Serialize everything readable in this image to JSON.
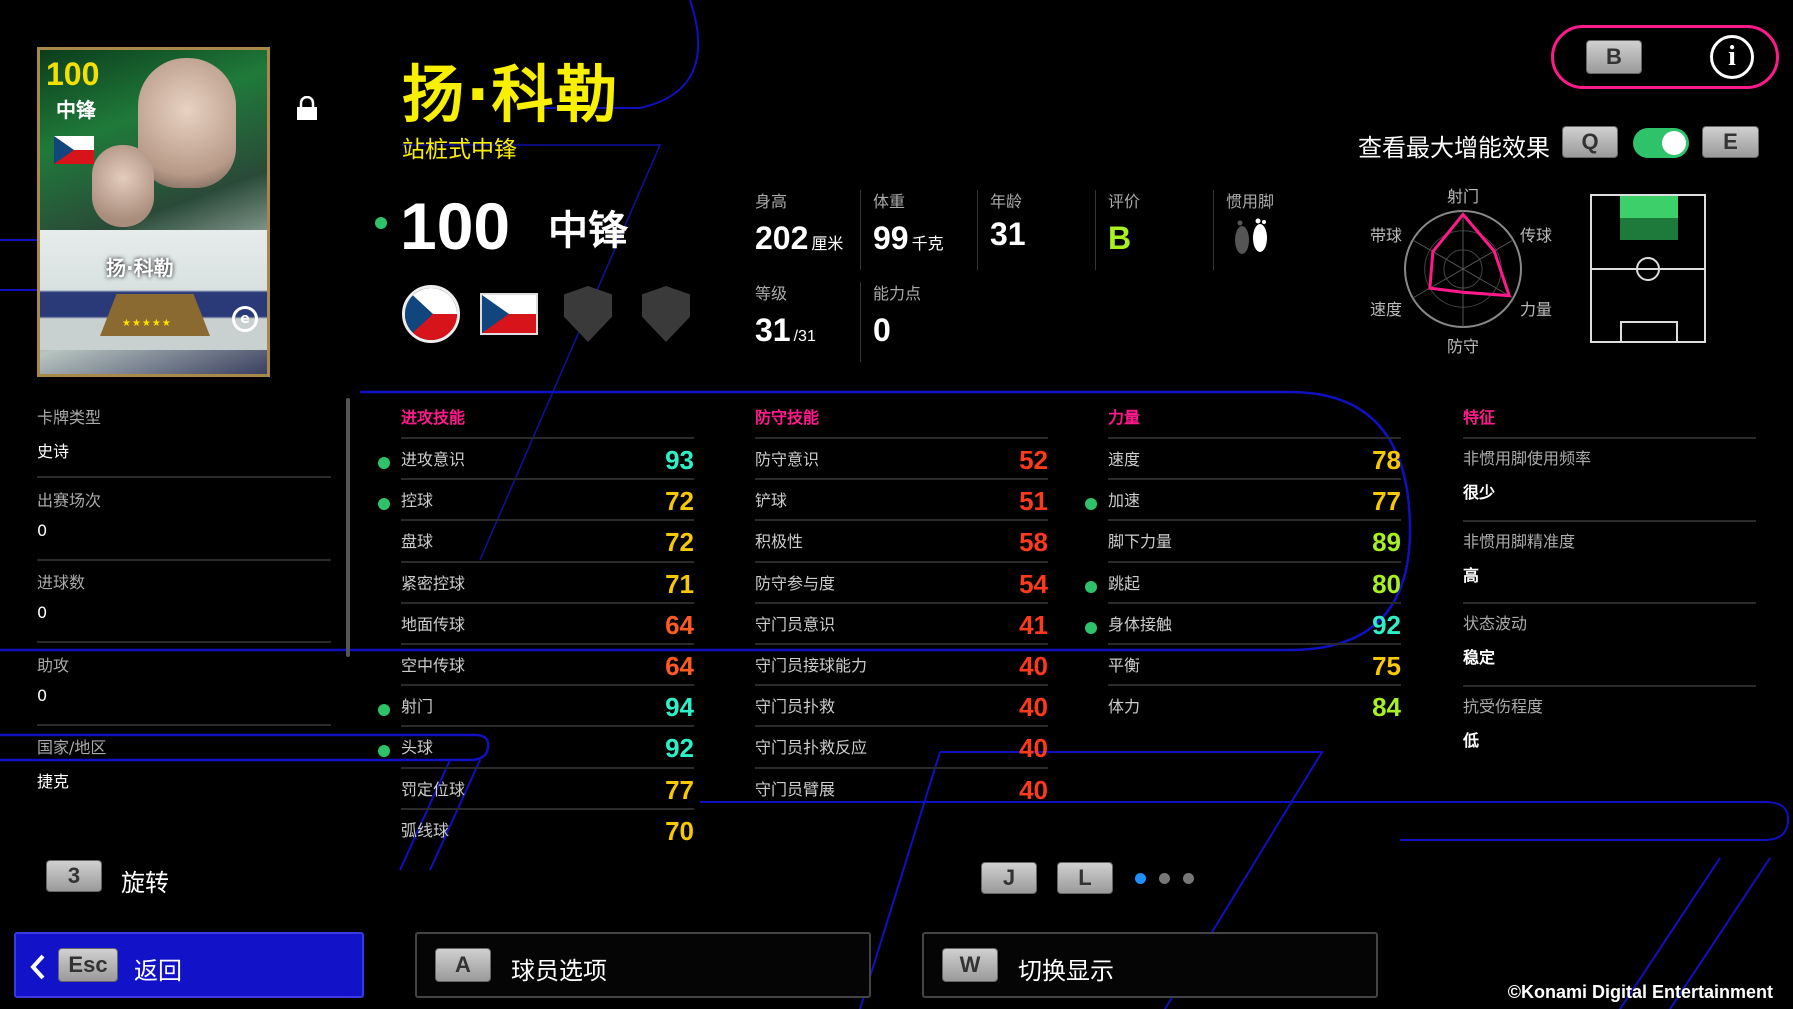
{
  "colors": {
    "accent_pink": "#ff1a8c",
    "name_yellow": "#f8f000",
    "dot_green": "#2ec36a",
    "val_90": "#2ef0c8",
    "val_80": "#a8f020",
    "val_70": "#f8c800",
    "val_60": "#ff5a1f",
    "val_low": "#ff3a1a",
    "back_button": "#1212c8"
  },
  "card": {
    "overall": "100",
    "position": "中锋",
    "name": "扬·科勒",
    "flag": "czech-flag",
    "stars": "★★★★★",
    "logo": "e-logo-icon"
  },
  "player": {
    "name": "扬·科勒",
    "playstyle": "站桩式中锋",
    "overall": "100",
    "position": "中锋",
    "locked": true
  },
  "stats": {
    "height": {
      "label": "身高",
      "value": "202",
      "unit": "厘米"
    },
    "weight": {
      "label": "体重",
      "value": "99",
      "unit": "千克"
    },
    "age": {
      "label": "年龄",
      "value": "31"
    },
    "rating": {
      "label": "评价",
      "value": "B"
    },
    "foot": {
      "label": "惯用脚",
      "icon": "feet-icon",
      "value": "right"
    },
    "level": {
      "label": "等级",
      "value": "31",
      "max": "/31"
    },
    "points": {
      "label": "能力点",
      "value": "0"
    }
  },
  "top_right": {
    "b_key": "B",
    "info_icon": "info-icon",
    "boost_label": "查看最大增能效果",
    "q_key": "Q",
    "e_key": "E",
    "boost_toggle_on": true
  },
  "radar": {
    "labels": [
      "射门",
      "传球",
      "力量",
      "防守",
      "速度",
      "带球"
    ],
    "values": [
      94,
      62,
      92,
      40,
      66,
      60
    ]
  },
  "pitch": {
    "highlight": "center-forward"
  },
  "left_info": [
    {
      "label": "卡牌类型",
      "value": "史诗"
    },
    {
      "label": "出赛场次",
      "value": "0"
    },
    {
      "label": "进球数",
      "value": "0"
    },
    {
      "label": "助攻",
      "value": "0"
    },
    {
      "label": "国家/地区",
      "value": "捷克"
    }
  ],
  "sections": [
    {
      "title": "进攻技能",
      "rows": [
        {
          "label": "进攻意识",
          "value": 93,
          "boosted": true
        },
        {
          "label": "控球",
          "value": 72,
          "boosted": true
        },
        {
          "label": "盘球",
          "value": 72
        },
        {
          "label": "紧密控球",
          "value": 71
        },
        {
          "label": "地面传球",
          "value": 64
        },
        {
          "label": "空中传球",
          "value": 64
        },
        {
          "label": "射门",
          "value": 94,
          "boosted": true
        },
        {
          "label": "头球",
          "value": 92,
          "boosted": true
        },
        {
          "label": "罚定位球",
          "value": 77
        },
        {
          "label": "弧线球",
          "value": 70
        }
      ]
    },
    {
      "title": "防守技能",
      "rows": [
        {
          "label": "防守意识",
          "value": 52
        },
        {
          "label": "铲球",
          "value": 51
        },
        {
          "label": "积极性",
          "value": 58
        },
        {
          "label": "防守参与度",
          "value": 54
        },
        {
          "label": "守门员意识",
          "value": 41
        },
        {
          "label": "守门员接球能力",
          "value": 40
        },
        {
          "label": "守门员扑救",
          "value": 40
        },
        {
          "label": "守门员扑救反应",
          "value": 40
        },
        {
          "label": "守门员臂展",
          "value": 40
        }
      ]
    },
    {
      "title": "力量",
      "rows": [
        {
          "label": "速度",
          "value": 78
        },
        {
          "label": "加速",
          "value": 77,
          "boosted": true
        },
        {
          "label": "脚下力量",
          "value": 89
        },
        {
          "label": "跳起",
          "value": 80,
          "boosted": true
        },
        {
          "label": "身体接触",
          "value": 92,
          "boosted": true
        },
        {
          "label": "平衡",
          "value": 75
        },
        {
          "label": "体力",
          "value": 84
        }
      ]
    }
  ],
  "traits": {
    "title": "特征",
    "rows": [
      {
        "label": "非惯用脚使用频率",
        "value": "很少"
      },
      {
        "label": "非惯用脚精准度",
        "value": "高"
      },
      {
        "label": "状态波动",
        "value": "稳定"
      },
      {
        "label": "抗受伤程度",
        "value": "低"
      }
    ]
  },
  "rotate": {
    "key": "3",
    "label": "旋转"
  },
  "pager": {
    "prev_key": "J",
    "next_key": "L",
    "pages": 3,
    "current": 1
  },
  "bottom": {
    "back": {
      "key": "Esc",
      "label": "返回"
    },
    "options": {
      "key": "A",
      "label": "球员选项"
    },
    "toggle": {
      "key": "W",
      "label": "切换显示"
    }
  },
  "copyright": "©Konami Digital Entertainment"
}
